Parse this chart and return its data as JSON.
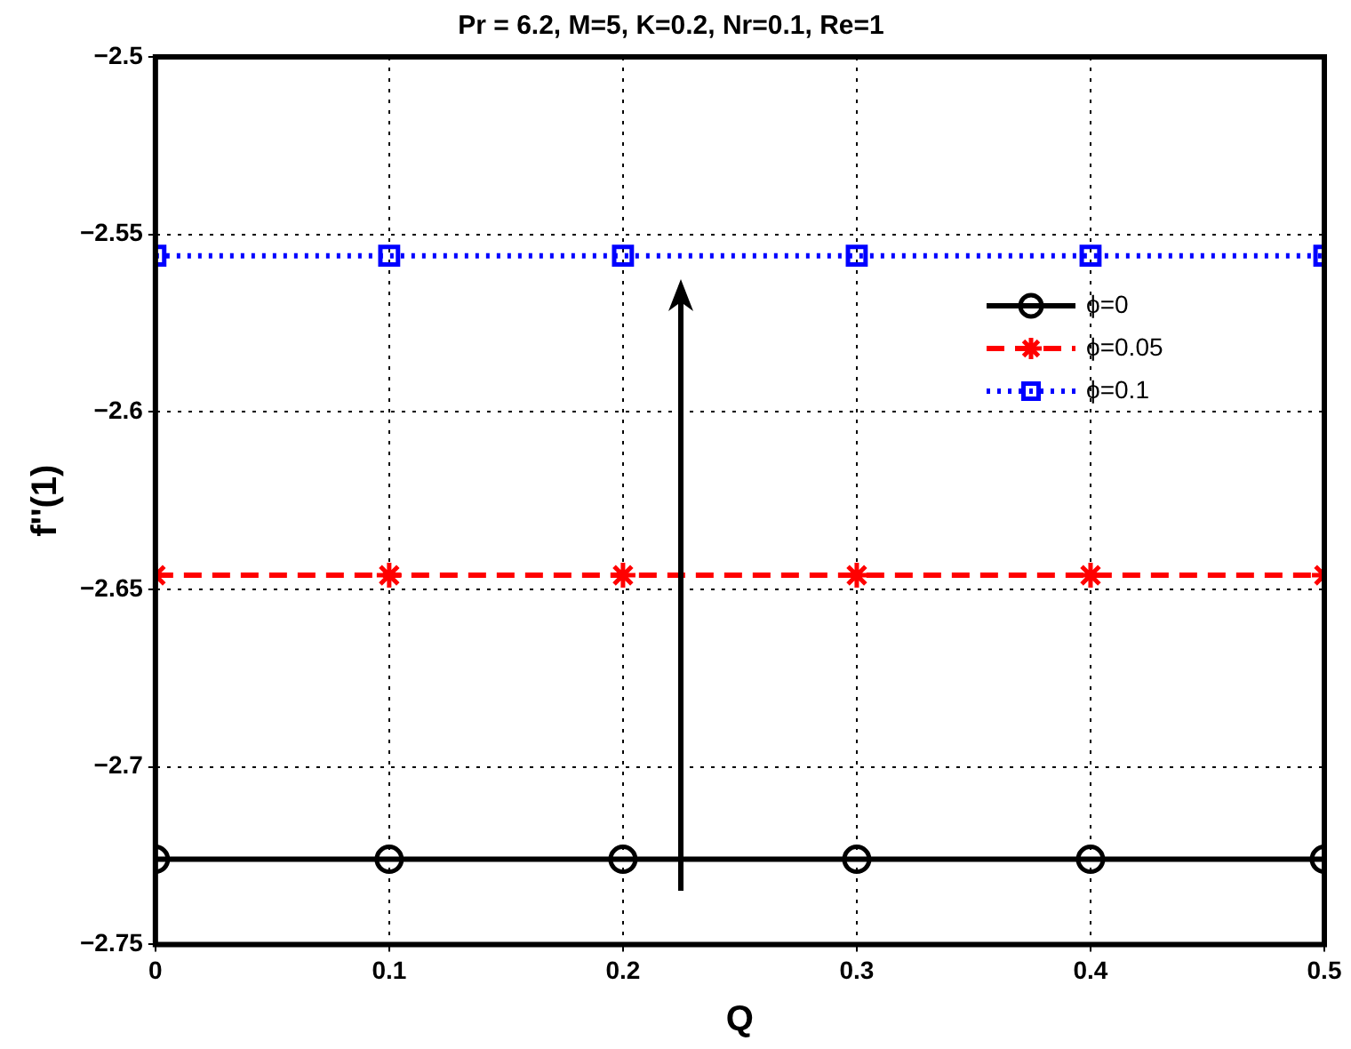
{
  "chart_data": {
    "type": "line",
    "title": "Pr = 6.2, M=5, K=0.2, Nr=0.1, Re=1",
    "xlabel": "Q",
    "ylabel": "f''(1)",
    "x": [
      0,
      0.1,
      0.2,
      0.3,
      0.4,
      0.5
    ],
    "series": [
      {
        "name": "ϕ=0",
        "color": "#000000",
        "marker": "circle",
        "line_style": "solid",
        "values": [
          -2.726,
          -2.726,
          -2.726,
          -2.726,
          -2.726,
          -2.726
        ]
      },
      {
        "name": "ϕ=0.05",
        "color": "#ff0000",
        "marker": "cross",
        "line_style": "dashed",
        "values": [
          -2.646,
          -2.646,
          -2.646,
          -2.646,
          -2.646,
          -2.646
        ]
      },
      {
        "name": "ϕ=0.1",
        "color": "#0000ff",
        "marker": "square",
        "line_style": "dotted",
        "values": [
          -2.556,
          -2.556,
          -2.556,
          -2.556,
          -2.556,
          -2.556
        ]
      }
    ],
    "xlim": [
      0,
      0.5
    ],
    "xticks": [
      0,
      0.1,
      0.2,
      0.3,
      0.4,
      0.5
    ],
    "ylim": [
      -2.75,
      -2.5
    ],
    "yticks": [
      -2.75,
      -2.7,
      -2.65,
      -2.6,
      -2.55,
      -2.5
    ],
    "grid": true,
    "legend": "top right"
  }
}
